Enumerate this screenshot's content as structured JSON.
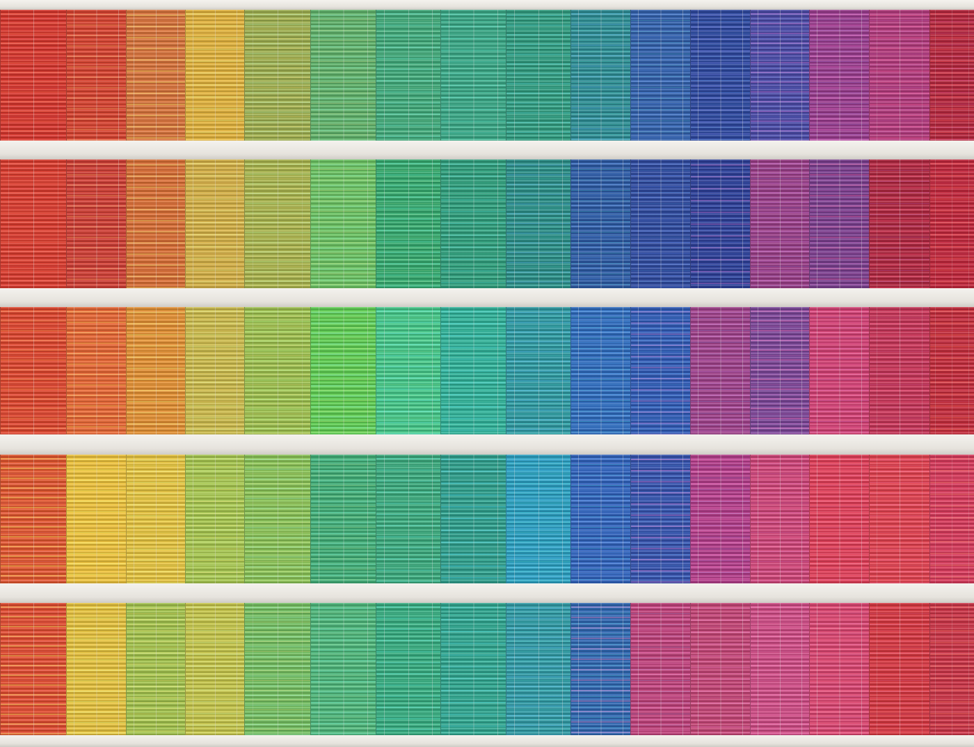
{
  "image": {
    "subject": "colorful-window-blinds-facade",
    "floors": [
      {
        "colors": [
          "#d9352b",
          "#d8412e",
          "#d9733a",
          "#e4b43c",
          "#9fb04f",
          "#5fb36a",
          "#3faa7a",
          "#38a886",
          "#2f9c7f",
          "#2c8e95",
          "#3160ad",
          "#2c47a0",
          "#4a4aa8",
          "#9a3b8e",
          "#b43a7d",
          "#b8263d"
        ]
      },
      {
        "colors": [
          "#dc3a2c",
          "#d03c33",
          "#da6e34",
          "#d6b246",
          "#aab54d",
          "#6cc563",
          "#34ab6f",
          "#2e9f7c",
          "#2a8f88",
          "#2b5aa5",
          "#2e4aa0",
          "#2c3f9a",
          "#9a3d87",
          "#7a3e8f",
          "#b1263f",
          "#c3263b"
        ]
      },
      {
        "colors": [
          "#e0452c",
          "#e96633",
          "#e59032",
          "#cdbc4c",
          "#9ec14e",
          "#5fd052",
          "#44c98a",
          "#2fb39a",
          "#2d9aa2",
          "#2d6bbf",
          "#2f5bb8",
          "#a0408a",
          "#7a4598",
          "#d43f73",
          "#c63356",
          "#c62b3b"
        ]
      },
      {
        "colors": [
          "#e4552d",
          "#f0c43b",
          "#e8c53f",
          "#a8c84f",
          "#8ac456",
          "#3fae76",
          "#3aab7d",
          "#2d9f8c",
          "#29a1c3",
          "#2f62be",
          "#3553b0",
          "#b43c8a",
          "#d04478",
          "#e33d57",
          "#e3404e",
          "#d9395b"
        ]
      },
      {
        "colors": [
          "#e34b2f",
          "#e8c43d",
          "#a3c44d",
          "#c7c74a",
          "#74c061",
          "#4cb77a",
          "#35ad80",
          "#2ea68f",
          "#2f9ba6",
          "#2e67b3",
          "#c0407a",
          "#c54475",
          "#cf4a84",
          "#dc4470",
          "#d8363f",
          "#cc3346"
        ]
      }
    ]
  }
}
